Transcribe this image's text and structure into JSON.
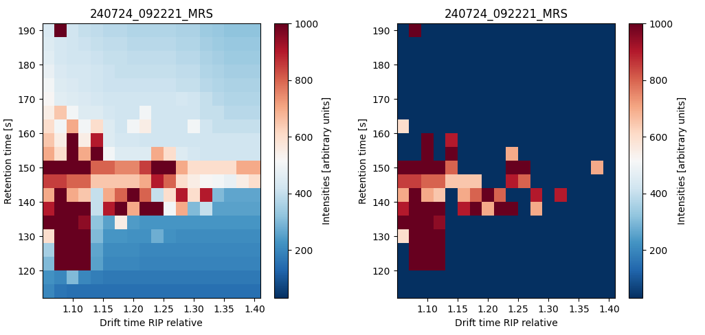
{
  "chart_data": [
    {
      "type": "heatmap",
      "title": "240724_092221_MRS",
      "x_label": "Drift time RIP relative",
      "y_label": "Retention time [s]",
      "color": "RdBu_r",
      "x": [
        1.06,
        1.08,
        1.1,
        1.12,
        1.14,
        1.16,
        1.18,
        1.2,
        1.22,
        1.24,
        1.26,
        1.28,
        1.3,
        1.32,
        1.34,
        1.36,
        1.38,
        1.4
      ],
      "y": [
        114,
        118,
        122,
        126,
        130,
        134,
        138,
        142,
        146,
        150,
        154,
        158,
        162,
        166,
        170,
        174,
        178,
        182,
        186,
        190
      ],
      "cells": [
        [
          200,
          160,
          150,
          150,
          150,
          150,
          150,
          150,
          150,
          150,
          150,
          150,
          150,
          150,
          150,
          150,
          150,
          150
        ],
        [
          220,
          200,
          300,
          200,
          180,
          170,
          170,
          170,
          170,
          170,
          170,
          170,
          170,
          170,
          170,
          170,
          170,
          170
        ],
        [
          300,
          1000,
          1000,
          1000,
          250,
          200,
          200,
          200,
          190,
          190,
          190,
          190,
          190,
          190,
          190,
          190,
          190,
          190
        ],
        [
          350,
          1000,
          1000,
          1000,
          260,
          210,
          210,
          210,
          200,
          200,
          200,
          200,
          200,
          200,
          200,
          200,
          200,
          200
        ],
        [
          600,
          1000,
          1000,
          1000,
          300,
          230,
          230,
          220,
          220,
          280,
          220,
          210,
          210,
          210,
          210,
          210,
          210,
          210
        ],
        [
          1000,
          1000,
          1000,
          950,
          320,
          250,
          550,
          240,
          230,
          230,
          230,
          230,
          230,
          230,
          230,
          230,
          230,
          230
        ],
        [
          900,
          1000,
          1000,
          1000,
          400,
          900,
          1000,
          700,
          1000,
          1000,
          500,
          700,
          300,
          400,
          250,
          250,
          250,
          250
        ],
        [
          700,
          1000,
          700,
          650,
          400,
          700,
          800,
          1000,
          800,
          400,
          600,
          900,
          600,
          900,
          300,
          260,
          260,
          260
        ],
        [
          850,
          850,
          800,
          800,
          650,
          650,
          650,
          650,
          700,
          900,
          800,
          600,
          550,
          520,
          500,
          480,
          550,
          600
        ],
        [
          1000,
          1000,
          1000,
          1000,
          800,
          800,
          750,
          750,
          850,
          1000,
          1000,
          700,
          600,
          600,
          600,
          600,
          700,
          700
        ],
        [
          700,
          600,
          1000,
          700,
          1000,
          500,
          450,
          450,
          450,
          700,
          600,
          450,
          430,
          420,
          420,
          420,
          420,
          420
        ],
        [
          650,
          550,
          1000,
          550,
          900,
          450,
          430,
          430,
          420,
          420,
          420,
          420,
          420,
          420,
          420,
          420,
          420,
          420
        ],
        [
          600,
          500,
          700,
          500,
          600,
          450,
          420,
          500,
          550,
          420,
          420,
          420,
          500,
          420,
          400,
          400,
          400,
          400
        ],
        [
          550,
          650,
          500,
          450,
          450,
          430,
          420,
          420,
          500,
          420,
          420,
          420,
          420,
          400,
          400,
          380,
          380,
          380
        ],
        [
          520,
          460,
          450,
          440,
          430,
          420,
          420,
          420,
          420,
          420,
          420,
          430,
          420,
          400,
          380,
          370,
          370,
          370
        ],
        [
          500,
          450,
          440,
          430,
          420,
          410,
          410,
          410,
          410,
          410,
          410,
          400,
          400,
          380,
          370,
          360,
          360,
          360
        ],
        [
          480,
          440,
          430,
          430,
          420,
          410,
          400,
          400,
          400,
          400,
          400,
          390,
          390,
          370,
          360,
          350,
          350,
          350
        ],
        [
          460,
          430,
          420,
          420,
          410,
          400,
          400,
          390,
          390,
          390,
          390,
          380,
          380,
          360,
          350,
          340,
          340,
          340
        ],
        [
          450,
          430,
          420,
          410,
          400,
          390,
          390,
          380,
          380,
          380,
          380,
          370,
          370,
          350,
          340,
          330,
          330,
          330
        ],
        [
          440,
          1000,
          420,
          400,
          390,
          380,
          380,
          370,
          370,
          370,
          370,
          360,
          360,
          340,
          330,
          320,
          320,
          320
        ]
      ],
      "xlim": [
        1.05,
        1.41
      ],
      "ylim": [
        112,
        192
      ],
      "xticks": [
        {
          "value": 1.1,
          "label": "1.10"
        },
        {
          "value": 1.15,
          "label": "1.15"
        },
        {
          "value": 1.2,
          "label": "1.20"
        },
        {
          "value": 1.25,
          "label": "1.25"
        },
        {
          "value": 1.3,
          "label": "1.30"
        },
        {
          "value": 1.35,
          "label": "1.35"
        },
        {
          "value": 1.4,
          "label": "1.40"
        }
      ],
      "yticks": [
        120,
        130,
        140,
        150,
        160,
        170,
        180,
        190
      ],
      "colorbar": {
        "label": "Intensities [arbitrary units]",
        "range": [
          30,
          1000
        ],
        "ticks": [
          200,
          400,
          600,
          800,
          1000
        ]
      }
    },
    {
      "type": "heatmap",
      "title": "240724_092221_MRS",
      "x_label": "Drift time RIP relative",
      "y_label": "Retention time [s]",
      "color": "RdBu_r",
      "x": [
        1.06,
        1.08,
        1.1,
        1.12,
        1.14,
        1.16,
        1.18,
        1.2,
        1.22,
        1.24,
        1.26,
        1.28,
        1.3,
        1.32,
        1.34,
        1.36,
        1.38,
        1.4
      ],
      "y": [
        114,
        118,
        122,
        126,
        130,
        134,
        138,
        142,
        146,
        150,
        154,
        158,
        162,
        166,
        170,
        174,
        178,
        182,
        186,
        190
      ],
      "cells": [
        [
          30,
          30,
          30,
          30,
          30,
          30,
          30,
          30,
          30,
          30,
          30,
          30,
          30,
          30,
          30,
          30,
          30,
          30
        ],
        [
          30,
          30,
          30,
          30,
          30,
          30,
          30,
          30,
          30,
          30,
          30,
          30,
          30,
          30,
          30,
          30,
          30,
          30
        ],
        [
          30,
          1000,
          1000,
          1000,
          30,
          30,
          30,
          30,
          30,
          30,
          30,
          30,
          30,
          30,
          30,
          30,
          30,
          30
        ],
        [
          30,
          1000,
          1000,
          1000,
          30,
          30,
          30,
          30,
          30,
          30,
          30,
          30,
          30,
          30,
          30,
          30,
          30,
          30
        ],
        [
          600,
          1000,
          1000,
          1000,
          30,
          30,
          30,
          30,
          30,
          30,
          30,
          30,
          30,
          30,
          30,
          30,
          30,
          30
        ],
        [
          1000,
          1000,
          1000,
          950,
          30,
          30,
          30,
          30,
          30,
          30,
          30,
          30,
          30,
          30,
          30,
          30,
          30,
          30
        ],
        [
          900,
          1000,
          1000,
          1000,
          30,
          900,
          1000,
          700,
          1000,
          1000,
          30,
          700,
          30,
          30,
          30,
          30,
          30,
          30
        ],
        [
          700,
          1000,
          700,
          650,
          30,
          700,
          800,
          1000,
          800,
          30,
          30,
          900,
          30,
          900,
          30,
          30,
          30,
          30
        ],
        [
          850,
          850,
          800,
          800,
          650,
          650,
          650,
          30,
          30,
          900,
          800,
          30,
          30,
          30,
          30,
          30,
          30,
          30
        ],
        [
          1000,
          1000,
          1000,
          1000,
          800,
          30,
          30,
          30,
          30,
          1000,
          1000,
          30,
          30,
          30,
          30,
          30,
          700,
          30
        ],
        [
          30,
          30,
          1000,
          30,
          1000,
          30,
          30,
          30,
          30,
          700,
          30,
          30,
          30,
          30,
          30,
          30,
          30,
          30
        ],
        [
          30,
          30,
          1000,
          30,
          900,
          30,
          30,
          30,
          30,
          30,
          30,
          30,
          30,
          30,
          30,
          30,
          30,
          30
        ],
        [
          600,
          30,
          30,
          30,
          30,
          30,
          30,
          30,
          30,
          30,
          30,
          30,
          30,
          30,
          30,
          30,
          30,
          30
        ],
        [
          30,
          30,
          30,
          30,
          30,
          30,
          30,
          30,
          30,
          30,
          30,
          30,
          30,
          30,
          30,
          30,
          30,
          30
        ],
        [
          30,
          30,
          30,
          30,
          30,
          30,
          30,
          30,
          30,
          30,
          30,
          30,
          30,
          30,
          30,
          30,
          30,
          30
        ],
        [
          30,
          30,
          30,
          30,
          30,
          30,
          30,
          30,
          30,
          30,
          30,
          30,
          30,
          30,
          30,
          30,
          30,
          30
        ],
        [
          30,
          30,
          30,
          30,
          30,
          30,
          30,
          30,
          30,
          30,
          30,
          30,
          30,
          30,
          30,
          30,
          30,
          30
        ],
        [
          30,
          30,
          30,
          30,
          30,
          30,
          30,
          30,
          30,
          30,
          30,
          30,
          30,
          30,
          30,
          30,
          30,
          30
        ],
        [
          30,
          30,
          30,
          30,
          30,
          30,
          30,
          30,
          30,
          30,
          30,
          30,
          30,
          30,
          30,
          30,
          30,
          30
        ],
        [
          30,
          1000,
          30,
          30,
          30,
          30,
          30,
          30,
          30,
          30,
          30,
          30,
          30,
          30,
          30,
          30,
          30,
          30
        ]
      ],
      "xlim": [
        1.05,
        1.41
      ],
      "ylim": [
        112,
        192
      ],
      "xticks": [
        {
          "value": 1.1,
          "label": "1.10"
        },
        {
          "value": 1.15,
          "label": "1.15"
        },
        {
          "value": 1.2,
          "label": "1.20"
        },
        {
          "value": 1.25,
          "label": "1.25"
        },
        {
          "value": 1.3,
          "label": "1.30"
        },
        {
          "value": 1.35,
          "label": "1.35"
        },
        {
          "value": 1.4,
          "label": "1.40"
        }
      ],
      "yticks": [
        120,
        130,
        140,
        150,
        160,
        170,
        180,
        190
      ],
      "colorbar": {
        "label": "Intensities [arbitrary units]",
        "range": [
          30,
          1000
        ],
        "ticks": [
          200,
          400,
          600,
          800,
          1000
        ]
      }
    }
  ]
}
